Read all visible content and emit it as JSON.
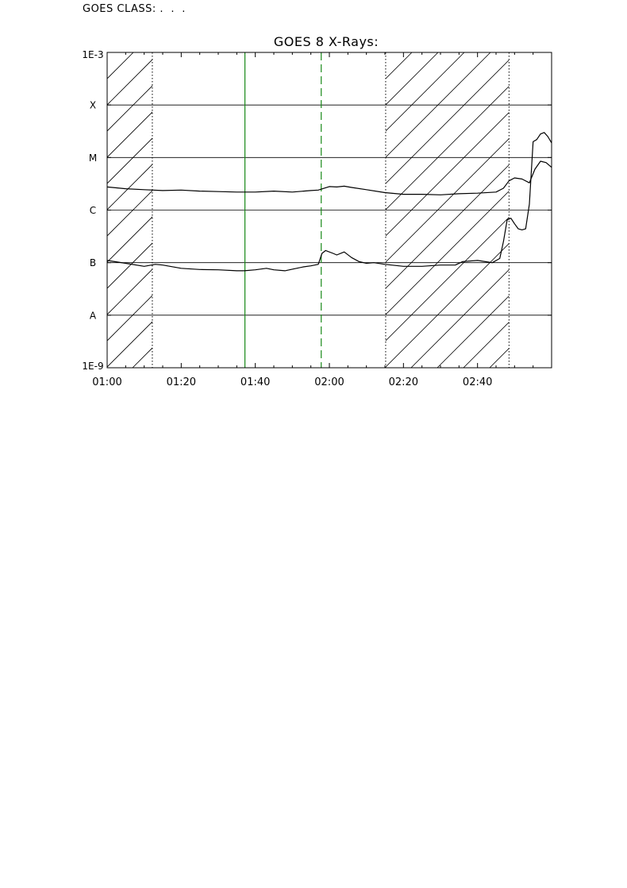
{
  "header": {
    "goes_class_label": "GOES CLASS: .  .  ."
  },
  "chart_data": {
    "type": "line",
    "title": "GOES 8 X-Rays:",
    "xlabel": "",
    "ylabel": "",
    "y_scale": "log",
    "x_units": "minutes after 01:00",
    "xlim": [
      0,
      120
    ],
    "ylim": [
      1e-09,
      0.001
    ],
    "x_ticks": [
      {
        "value": 0,
        "label": "01:00"
      },
      {
        "value": 20,
        "label": "01:20"
      },
      {
        "value": 40,
        "label": "01:40"
      },
      {
        "value": 60,
        "label": "02:00"
      },
      {
        "value": 80,
        "label": "02:20"
      },
      {
        "value": 100,
        "label": "02:40"
      }
    ],
    "y_ticks": [
      {
        "value": 0.001,
        "label": "1E-3"
      },
      {
        "value": 0.0001,
        "label": "X"
      },
      {
        "value": 1e-05,
        "label": "M"
      },
      {
        "value": 1e-06,
        "label": "C"
      },
      {
        "value": 1e-07,
        "label": "B"
      },
      {
        "value": 1e-08,
        "label": "A"
      },
      {
        "value": 1e-09,
        "label": "1E-9"
      }
    ],
    "grid": {
      "horizontal": true,
      "vertical": false
    },
    "hatched_intervals": [
      [
        0,
        12.2
      ],
      [
        75.2,
        108.5
      ]
    ],
    "dotted_lines": [
      12.2,
      75.2,
      108.5
    ],
    "markers": [
      {
        "x": 37.2,
        "style": "solid",
        "color": "#1a8a1a"
      },
      {
        "x": 57.8,
        "style": "dashed",
        "color": "#1a8a1a"
      }
    ],
    "series": [
      {
        "points": [
          [
            0,
            2.75e-06
          ],
          [
            5,
            2.55e-06
          ],
          [
            10,
            2.45e-06
          ],
          [
            15,
            2.35e-06
          ],
          [
            20,
            2.4e-06
          ],
          [
            25,
            2.3e-06
          ],
          [
            30,
            2.25e-06
          ],
          [
            35,
            2.2e-06
          ],
          [
            40,
            2.2e-06
          ],
          [
            45,
            2.3e-06
          ],
          [
            50,
            2.2e-06
          ],
          [
            55,
            2.35e-06
          ],
          [
            57,
            2.4e-06
          ],
          [
            60,
            2.8e-06
          ],
          [
            62,
            2.75e-06
          ],
          [
            64,
            2.85e-06
          ],
          [
            66,
            2.7e-06
          ],
          [
            70,
            2.45e-06
          ],
          [
            75,
            2.15e-06
          ],
          [
            80,
            2e-06
          ],
          [
            85,
            2e-06
          ],
          [
            90,
            1.95e-06
          ],
          [
            95,
            2.05e-06
          ],
          [
            100,
            2.1e-06
          ],
          [
            105,
            2.2e-06
          ],
          [
            107,
            2.6e-06
          ],
          [
            108.5,
            3.6e-06
          ],
          [
            110,
            4.1e-06
          ],
          [
            112,
            3.9e-06
          ],
          [
            114,
            3.3e-06
          ],
          [
            115.5,
            6e-06
          ],
          [
            117,
            8.5e-06
          ],
          [
            118.5,
            8e-06
          ],
          [
            120,
            6.5e-06
          ]
        ],
        "color": "#000000"
      },
      {
        "points": [
          [
            0,
            1.1e-07
          ],
          [
            5,
            9.7e-08
          ],
          [
            10,
            8.5e-08
          ],
          [
            13,
            9.3e-08
          ],
          [
            15,
            9e-08
          ],
          [
            20,
            7.8e-08
          ],
          [
            25,
            7.4e-08
          ],
          [
            30,
            7.3e-08
          ],
          [
            35,
            7e-08
          ],
          [
            37,
            7e-08
          ],
          [
            40,
            7.3e-08
          ],
          [
            43,
            7.8e-08
          ],
          [
            45,
            7.3e-08
          ],
          [
            48,
            7e-08
          ],
          [
            50,
            7.5e-08
          ],
          [
            53,
            8.3e-08
          ],
          [
            55,
            8.7e-08
          ],
          [
            57,
            9.3e-08
          ],
          [
            58,
            1.5e-07
          ],
          [
            59,
            1.7e-07
          ],
          [
            61,
            1.5e-07
          ],
          [
            62,
            1.4e-07
          ],
          [
            64,
            1.6e-07
          ],
          [
            66,
            1.25e-07
          ],
          [
            68,
            1.05e-07
          ],
          [
            70,
            9.7e-08
          ],
          [
            72,
            1e-07
          ],
          [
            75,
            9.3e-08
          ],
          [
            80,
            8.5e-08
          ],
          [
            85,
            8.5e-08
          ],
          [
            90,
            9e-08
          ],
          [
            94,
            9e-08
          ],
          [
            96,
            1.05e-07
          ],
          [
            100,
            1.1e-07
          ],
          [
            104,
            1e-07
          ],
          [
            106,
            1.2e-07
          ],
          [
            107,
            2.5e-07
          ],
          [
            108,
            6.5e-07
          ],
          [
            109,
            7e-07
          ],
          [
            110,
            5.5e-07
          ],
          [
            111,
            4.4e-07
          ],
          [
            112,
            4.2e-07
          ],
          [
            113,
            4.4e-07
          ],
          [
            114,
            1.3e-06
          ],
          [
            115,
            2e-05
          ],
          [
            116,
            2.2e-05
          ],
          [
            117,
            2.8e-05
          ],
          [
            118,
            3e-05
          ],
          [
            119,
            2.5e-05
          ],
          [
            120,
            1.9e-05
          ]
        ],
        "color": "#000000"
      }
    ]
  }
}
